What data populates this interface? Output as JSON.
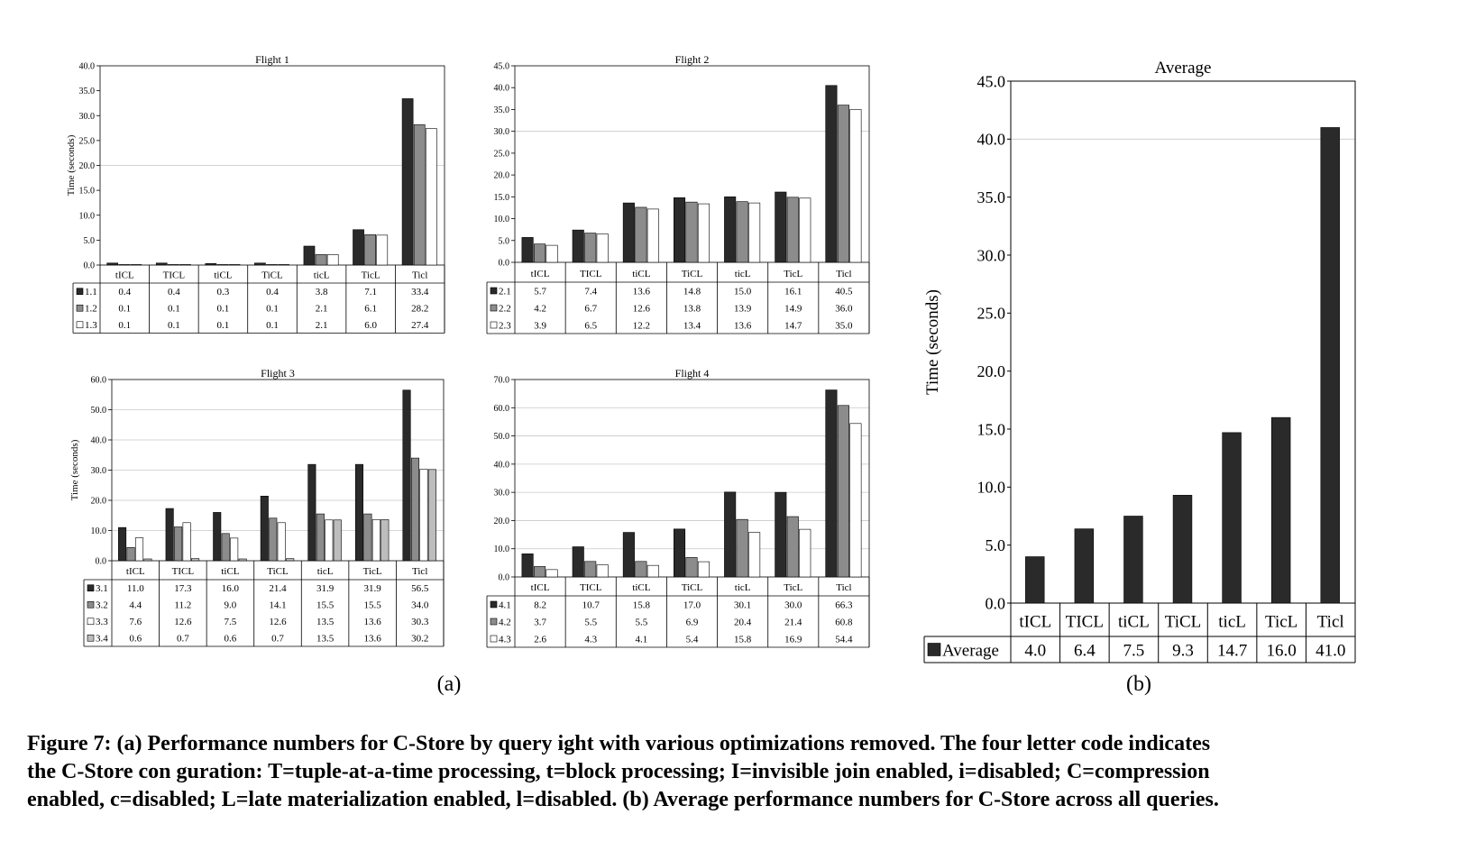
{
  "colors": {
    "s1": "#2a2a2a",
    "s2": "#8c8c8c",
    "s3": "#ffffff",
    "s4": "#bdbdbd",
    "grid": "#c8c8c8"
  },
  "sublabels": {
    "a": "(a)",
    "b": "(b)"
  },
  "caption": {
    "line1": "Figure 7: (a) Performance numbers for C-Store by query   ight with various optimizations removed. The four letter code indicates",
    "line2": "the C-Store con  guration: T=tuple-at-a-time processing, t=block processing; I=invisible join enabled, i=disabled; C=compression",
    "line3": "enabled, c=disabled; L=late materialization enabled, l=disabled. (b) Average performance numbers for C-Store across all queries."
  },
  "chart_data": [
    {
      "id": "flight1",
      "type": "bar",
      "title": "Flight 1",
      "ylabel": "Time (seconds)",
      "ylim": [
        0,
        40
      ],
      "yticks": [
        "0.0",
        "5.0",
        "10.0",
        "15.0",
        "20.0",
        "25.0",
        "30.0",
        "35.0",
        "40.0"
      ],
      "grid": [
        20
      ],
      "categories": [
        "tICL",
        "TICL",
        "tiCL",
        "TiCL",
        "ticL",
        "TicL",
        "Ticl"
      ],
      "series": [
        {
          "name": "1.1",
          "color": "#2a2a2a",
          "values": [
            0.4,
            0.4,
            0.3,
            0.4,
            3.8,
            7.1,
            33.4
          ],
          "labels": [
            "0.4",
            "0.4",
            "0.3",
            "0.4",
            "3.8",
            "7.1",
            "33.4"
          ]
        },
        {
          "name": "1.2",
          "color": "#8c8c8c",
          "values": [
            0.1,
            0.1,
            0.1,
            0.1,
            2.1,
            6.1,
            28.2
          ],
          "labels": [
            "0.1",
            "0.1",
            "0.1",
            "0.1",
            "2.1",
            "6.1",
            "28.2"
          ]
        },
        {
          "name": "1.3",
          "color": "#ffffff",
          "values": [
            0.1,
            0.1,
            0.1,
            0.1,
            2.1,
            6.0,
            27.4
          ],
          "labels": [
            "0.1",
            "0.1",
            "0.1",
            "0.1",
            "2.1",
            "6.0",
            "27.4"
          ]
        }
      ]
    },
    {
      "id": "flight2",
      "type": "bar",
      "title": "Flight 2",
      "ylabel": "",
      "ylim": [
        0,
        45
      ],
      "yticks": [
        "0.0",
        "5.0",
        "10.0",
        "15.0",
        "20.0",
        "25.0",
        "30.0",
        "35.0",
        "40.0",
        "45.0"
      ],
      "grid": [
        30
      ],
      "categories": [
        "tICL",
        "TICL",
        "tiCL",
        "TiCL",
        "ticL",
        "TicL",
        "Ticl"
      ],
      "series": [
        {
          "name": "2.1",
          "color": "#2a2a2a",
          "values": [
            5.7,
            7.4,
            13.6,
            14.8,
            15.0,
            16.1,
            40.5
          ],
          "labels": [
            "5.7",
            "7.4",
            "13.6",
            "14.8",
            "15.0",
            "16.1",
            "40.5"
          ]
        },
        {
          "name": "2.2",
          "color": "#8c8c8c",
          "values": [
            4.2,
            6.7,
            12.6,
            13.8,
            13.9,
            14.9,
            36.0
          ],
          "labels": [
            "4.2",
            "6.7",
            "12.6",
            "13.8",
            "13.9",
            "14.9",
            "36.0"
          ]
        },
        {
          "name": "2.3",
          "color": "#ffffff",
          "values": [
            3.9,
            6.5,
            12.2,
            13.4,
            13.6,
            14.7,
            35.0
          ],
          "labels": [
            "3.9",
            "6.5",
            "12.2",
            "13.4",
            "13.6",
            "14.7",
            "35.0"
          ]
        }
      ]
    },
    {
      "id": "flight3",
      "type": "bar",
      "title": "Flight 3",
      "ylabel": "Time (seconds)",
      "ylim": [
        0,
        60
      ],
      "yticks": [
        "0.0",
        "10.0",
        "20.0",
        "30.0",
        "40.0",
        "50.0",
        "60.0"
      ],
      "grid": [
        10,
        20,
        30,
        40,
        50
      ],
      "categories": [
        "tICL",
        "TICL",
        "tiCL",
        "TiCL",
        "ticL",
        "TicL",
        "Ticl"
      ],
      "series": [
        {
          "name": "3.1",
          "color": "#2a2a2a",
          "values": [
            11.0,
            17.3,
            16.0,
            21.4,
            31.9,
            31.9,
            56.5
          ],
          "labels": [
            "11.0",
            "17.3",
            "16.0",
            "21.4",
            "31.9",
            "31.9",
            "56.5"
          ]
        },
        {
          "name": "3.2",
          "color": "#8c8c8c",
          "values": [
            4.4,
            11.2,
            9.0,
            14.1,
            15.5,
            15.5,
            34.0
          ],
          "labels": [
            "4.4",
            "11.2",
            "9.0",
            "14.1",
            "15.5",
            "15.5",
            "34.0"
          ]
        },
        {
          "name": "3.3",
          "color": "#ffffff",
          "values": [
            7.6,
            12.6,
            7.5,
            12.6,
            13.5,
            13.6,
            30.3
          ],
          "labels": [
            "7.6",
            "12.6",
            "7.5",
            "12.6",
            "13.5",
            "13.6",
            "30.3"
          ]
        },
        {
          "name": "3.4",
          "color": "#bdbdbd",
          "values": [
            0.6,
            0.7,
            0.6,
            0.7,
            13.5,
            13.6,
            30.2
          ],
          "labels": [
            "0.6",
            "0.7",
            "0.6",
            "0.7",
            "13.5",
            "13.6",
            "30.2"
          ]
        }
      ]
    },
    {
      "id": "flight4",
      "type": "bar",
      "title": "Flight 4",
      "ylabel": "",
      "ylim": [
        0,
        70
      ],
      "yticks": [
        "0.0",
        "10.0",
        "20.0",
        "30.0",
        "40.0",
        "50.0",
        "60.0",
        "70.0"
      ],
      "grid": [
        10,
        20,
        30,
        40,
        50,
        60
      ],
      "categories": [
        "tICL",
        "TICL",
        "tiCL",
        "TiCL",
        "ticL",
        "TicL",
        "Ticl"
      ],
      "series": [
        {
          "name": "4.1",
          "color": "#2a2a2a",
          "values": [
            8.2,
            10.7,
            15.8,
            17.0,
            30.1,
            30.0,
            66.3
          ],
          "labels": [
            "8.2",
            "10.7",
            "15.8",
            "17.0",
            "30.1",
            "30.0",
            "66.3"
          ]
        },
        {
          "name": "4.2",
          "color": "#8c8c8c",
          "values": [
            3.7,
            5.5,
            5.5,
            6.9,
            20.4,
            21.4,
            60.8
          ],
          "labels": [
            "3.7",
            "5.5",
            "5.5",
            "6.9",
            "20.4",
            "21.4",
            "60.8"
          ]
        },
        {
          "name": "4.3",
          "color": "#ffffff",
          "values": [
            2.6,
            4.3,
            4.1,
            5.4,
            15.8,
            16.9,
            54.4
          ],
          "labels": [
            "2.6",
            "4.3",
            "4.1",
            "5.4",
            "15.8",
            "16.9",
            "54.4"
          ]
        }
      ]
    },
    {
      "id": "average",
      "type": "bar",
      "title": "Average",
      "ylabel": "Time (seconds)",
      "ylim": [
        0,
        45
      ],
      "yticks": [
        "0.0",
        "5.0",
        "10.0",
        "15.0",
        "20.0",
        "25.0",
        "30.0",
        "35.0",
        "40.0",
        "45.0"
      ],
      "grid": [
        40
      ],
      "categories": [
        "tICL",
        "TICL",
        "tiCL",
        "TiCL",
        "ticL",
        "TicL",
        "Ticl"
      ],
      "series": [
        {
          "name": "Average",
          "color": "#2a2a2a",
          "values": [
            4.0,
            6.4,
            7.5,
            9.3,
            14.7,
            16.0,
            41.0
          ],
          "labels": [
            "4.0",
            "6.4",
            "7.5",
            "9.3",
            "14.7",
            "16.0",
            "41.0"
          ]
        }
      ]
    }
  ]
}
